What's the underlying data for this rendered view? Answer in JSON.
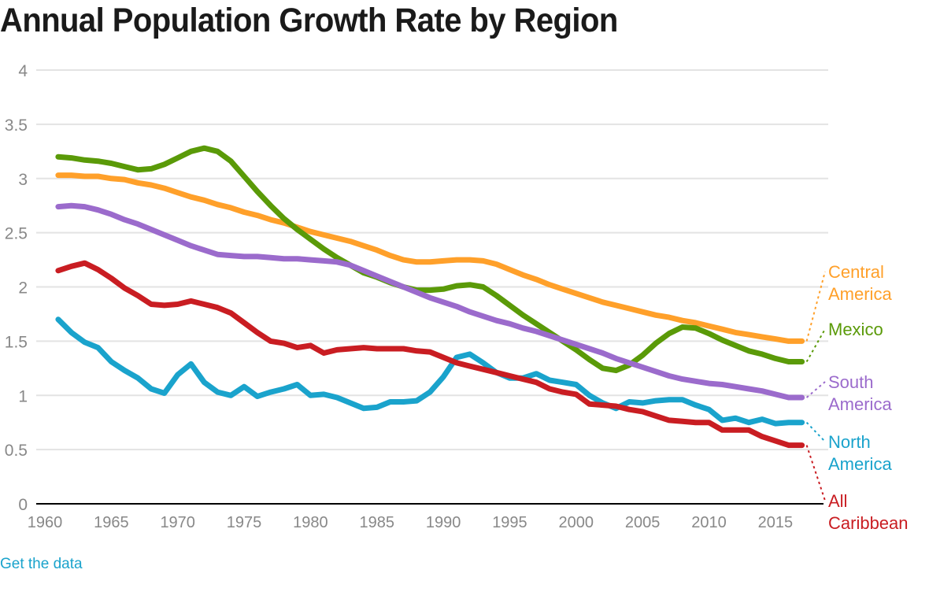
{
  "page": {
    "title": "Annual Population Growth Rate by Region",
    "get_data_link": "Get the data"
  },
  "chart_data": {
    "type": "line",
    "title": "Annual Population Growth Rate by Region",
    "xlabel": "",
    "ylabel": "",
    "xlim": [
      1960,
      2017
    ],
    "ylim": [
      0,
      4
    ],
    "grid": true,
    "legend": "right (direct labels at line ends)",
    "x_ticks": [
      1960,
      1965,
      1970,
      1975,
      1980,
      1985,
      1990,
      1995,
      2000,
      2005,
      2010,
      2015
    ],
    "x_tick_labels": [
      "1960",
      "1965",
      "1970",
      "1975",
      "1980",
      "1985",
      "1990",
      "1995",
      "2000",
      "2005",
      "2010",
      "2015"
    ],
    "y_ticks": [
      0,
      0.5,
      1,
      1.5,
      2,
      2.5,
      3,
      3.5,
      4
    ],
    "y_tick_labels": [
      "0",
      "0.5",
      "1",
      "1.5",
      "2",
      "2.5",
      "3",
      "3.5",
      "4"
    ],
    "x": [
      1961,
      1962,
      1963,
      1964,
      1965,
      1966,
      1967,
      1968,
      1969,
      1970,
      1971,
      1972,
      1973,
      1974,
      1975,
      1976,
      1977,
      1978,
      1979,
      1980,
      1981,
      1982,
      1983,
      1984,
      1985,
      1986,
      1987,
      1988,
      1989,
      1990,
      1991,
      1992,
      1993,
      1994,
      1995,
      1996,
      1997,
      1998,
      1999,
      2000,
      2001,
      2002,
      2003,
      2004,
      2005,
      2006,
      2007,
      2008,
      2009,
      2010,
      2011,
      2012,
      2013,
      2014,
      2015,
      2016,
      2017
    ],
    "series": [
      {
        "name": "Central America",
        "label_lines": [
          "Central",
          "America"
        ],
        "color": "#ffa02a",
        "values": [
          3.03,
          3.03,
          3.02,
          3.02,
          3.0,
          2.99,
          2.96,
          2.94,
          2.91,
          2.87,
          2.83,
          2.8,
          2.76,
          2.73,
          2.69,
          2.66,
          2.62,
          2.59,
          2.55,
          2.51,
          2.48,
          2.45,
          2.42,
          2.38,
          2.34,
          2.29,
          2.25,
          2.23,
          2.23,
          2.24,
          2.25,
          2.25,
          2.24,
          2.21,
          2.16,
          2.11,
          2.07,
          2.02,
          1.98,
          1.94,
          1.9,
          1.86,
          1.83,
          1.8,
          1.77,
          1.74,
          1.72,
          1.69,
          1.67,
          1.64,
          1.61,
          1.58,
          1.56,
          1.54,
          1.52,
          1.5,
          1.5
        ]
      },
      {
        "name": "Mexico",
        "label_lines": [
          "Mexico"
        ],
        "color": "#5a9a08",
        "values": [
          3.2,
          3.19,
          3.17,
          3.16,
          3.14,
          3.11,
          3.08,
          3.09,
          3.13,
          3.19,
          3.25,
          3.28,
          3.25,
          3.16,
          3.02,
          2.88,
          2.75,
          2.63,
          2.53,
          2.44,
          2.35,
          2.27,
          2.2,
          2.13,
          2.09,
          2.04,
          2.0,
          1.97,
          1.97,
          1.98,
          2.01,
          2.02,
          2.0,
          1.92,
          1.83,
          1.74,
          1.66,
          1.58,
          1.5,
          1.42,
          1.33,
          1.25,
          1.23,
          1.28,
          1.37,
          1.48,
          1.57,
          1.63,
          1.62,
          1.57,
          1.51,
          1.46,
          1.41,
          1.38,
          1.34,
          1.31,
          1.31
        ]
      },
      {
        "name": "South America",
        "label_lines": [
          "South",
          "America"
        ],
        "color": "#9b6bcc",
        "values": [
          2.74,
          2.75,
          2.74,
          2.71,
          2.67,
          2.62,
          2.58,
          2.53,
          2.48,
          2.43,
          2.38,
          2.34,
          2.3,
          2.29,
          2.28,
          2.28,
          2.27,
          2.26,
          2.26,
          2.25,
          2.24,
          2.23,
          2.2,
          2.15,
          2.1,
          2.05,
          2.0,
          1.95,
          1.9,
          1.86,
          1.82,
          1.77,
          1.73,
          1.69,
          1.66,
          1.62,
          1.59,
          1.55,
          1.51,
          1.47,
          1.43,
          1.39,
          1.34,
          1.3,
          1.26,
          1.22,
          1.18,
          1.15,
          1.13,
          1.11,
          1.1,
          1.08,
          1.06,
          1.04,
          1.01,
          0.98,
          0.98
        ]
      },
      {
        "name": "North America",
        "label_lines": [
          "North",
          "America"
        ],
        "color": "#1aa3cc",
        "values": [
          1.7,
          1.58,
          1.49,
          1.44,
          1.31,
          1.23,
          1.16,
          1.06,
          1.02,
          1.19,
          1.29,
          1.12,
          1.03,
          1.0,
          1.08,
          0.99,
          1.03,
          1.06,
          1.1,
          1.0,
          1.01,
          0.98,
          0.93,
          0.88,
          0.89,
          0.94,
          0.94,
          0.95,
          1.03,
          1.17,
          1.35,
          1.38,
          1.3,
          1.21,
          1.16,
          1.16,
          1.2,
          1.14,
          1.12,
          1.1,
          1.0,
          0.93,
          0.88,
          0.94,
          0.93,
          0.95,
          0.96,
          0.96,
          0.91,
          0.87,
          0.77,
          0.79,
          0.75,
          0.78,
          0.74,
          0.75,
          0.75
        ]
      },
      {
        "name": "All Caribbean",
        "label_lines": [
          "All",
          "Caribbean"
        ],
        "color": "#c91d22",
        "values": [
          2.15,
          2.19,
          2.22,
          2.16,
          2.08,
          1.99,
          1.92,
          1.84,
          1.83,
          1.84,
          1.87,
          1.84,
          1.81,
          1.76,
          1.67,
          1.58,
          1.5,
          1.48,
          1.44,
          1.46,
          1.39,
          1.42,
          1.43,
          1.44,
          1.43,
          1.43,
          1.43,
          1.41,
          1.4,
          1.35,
          1.3,
          1.27,
          1.24,
          1.21,
          1.18,
          1.15,
          1.12,
          1.06,
          1.03,
          1.01,
          0.92,
          0.91,
          0.9,
          0.87,
          0.85,
          0.81,
          0.77,
          0.76,
          0.75,
          0.75,
          0.68,
          0.68,
          0.68,
          0.62,
          0.58,
          0.54,
          0.54
        ]
      }
    ]
  }
}
